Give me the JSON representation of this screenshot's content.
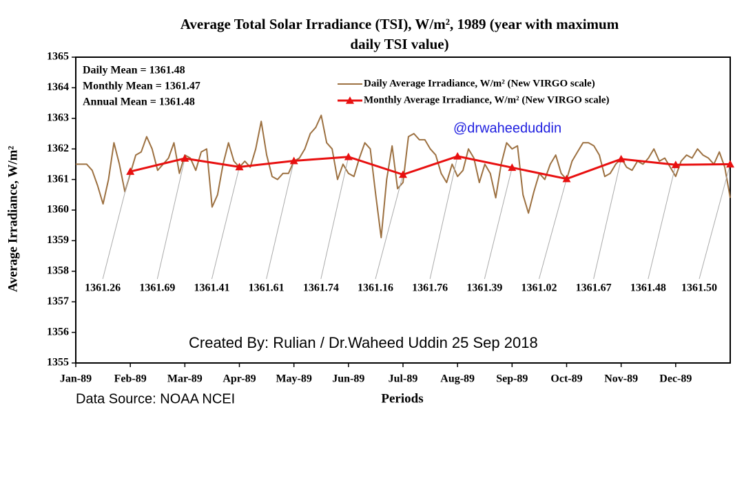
{
  "chart_data": {
    "type": "line",
    "title": [
      "Average Total Solar Irradiance (TSI), W/m², 1989 (year with maximum",
      "daily TSI value)"
    ],
    "x_label": "Periods",
    "y_label": "Average Irradiance, W/m²",
    "stats": [
      "Daily Mean = 1361.48",
      "Monthly  Mean = 1361.47",
      "Annual  Mean = 1361.48"
    ],
    "annotations": [
      "@drwaheeduddin",
      "Created By: Rulian / Dr.Waheed Uddin  25 Sep 2018",
      "Data Source: NOAA NCEI"
    ],
    "xlim": [
      0,
      12
    ],
    "xticks": [
      {
        "value": 0,
        "label": "Jan-89"
      },
      {
        "value": 1,
        "label": "Feb-89"
      },
      {
        "value": 2,
        "label": "Mar-89"
      },
      {
        "value": 3,
        "label": "Apr-89"
      },
      {
        "value": 4,
        "label": "May-89"
      },
      {
        "value": 5,
        "label": "Jun-89"
      },
      {
        "value": 6,
        "label": "Jul-89"
      },
      {
        "value": 7,
        "label": "Aug-89"
      },
      {
        "value": 8,
        "label": "Sep-89"
      },
      {
        "value": 9,
        "label": "Oct-89"
      },
      {
        "value": 10,
        "label": "Nov-89"
      },
      {
        "value": 11,
        "label": "Dec-89"
      }
    ],
    "ylim": [
      1355,
      1365
    ],
    "yticks": [
      1355,
      1356,
      1357,
      1358,
      1359,
      1360,
      1361,
      1362,
      1363,
      1364,
      1365
    ],
    "legend": "upper right",
    "series": [
      {
        "name": "Daily Average Irradiance, W/m² (New VIRGO scale)",
        "color": "#9c7040",
        "marker": "none",
        "x": [
          0,
          0.1,
          0.2,
          0.3,
          0.4,
          0.5,
          0.6,
          0.7,
          0.8,
          0.9,
          1,
          1.1,
          1.2,
          1.3,
          1.4,
          1.5,
          1.6,
          1.7,
          1.8,
          1.9,
          2,
          2.1,
          2.2,
          2.3,
          2.4,
          2.5,
          2.6,
          2.7,
          2.8,
          2.9,
          3,
          3.1,
          3.2,
          3.3,
          3.4,
          3.5,
          3.6,
          3.7,
          3.8,
          3.9,
          4,
          4.1,
          4.2,
          4.3,
          4.4,
          4.5,
          4.6,
          4.7,
          4.8,
          4.9,
          5,
          5.1,
          5.2,
          5.3,
          5.4,
          5.5,
          5.6,
          5.7,
          5.8,
          5.9,
          6,
          6.1,
          6.2,
          6.3,
          6.4,
          6.5,
          6.6,
          6.7,
          6.8,
          6.9,
          7,
          7.1,
          7.2,
          7.3,
          7.4,
          7.5,
          7.6,
          7.7,
          7.8,
          7.9,
          8,
          8.1,
          8.2,
          8.3,
          8.4,
          8.5,
          8.6,
          8.7,
          8.8,
          8.9,
          9,
          9.1,
          9.2,
          9.3,
          9.4,
          9.5,
          9.6,
          9.7,
          9.8,
          9.9,
          10,
          10.1,
          10.2,
          10.3,
          10.4,
          10.5,
          10.6,
          10.7,
          10.8,
          10.9,
          11,
          11.1,
          11.2,
          11.3,
          11.4,
          11.5,
          11.6,
          11.7,
          11.8,
          11.9,
          12
        ],
        "values": [
          1361.5,
          1361.5,
          1361.5,
          1361.3,
          1360.8,
          1360.2,
          1361.0,
          1362.2,
          1361.5,
          1360.6,
          1361.2,
          1361.8,
          1361.9,
          1362.4,
          1362.0,
          1361.3,
          1361.5,
          1361.7,
          1362.2,
          1361.2,
          1361.8,
          1361.7,
          1361.3,
          1361.9,
          1362.0,
          1360.1,
          1360.5,
          1361.5,
          1362.2,
          1361.6,
          1361.4,
          1361.6,
          1361.4,
          1362.0,
          1362.9,
          1361.8,
          1361.1,
          1361.0,
          1361.2,
          1361.2,
          1361.6,
          1361.7,
          1362.0,
          1362.5,
          1362.7,
          1363.1,
          1362.2,
          1362.0,
          1361.0,
          1361.5,
          1361.2,
          1361.1,
          1361.7,
          1362.2,
          1362.0,
          1360.5,
          1359.1,
          1361.0,
          1362.1,
          1360.7,
          1360.9,
          1362.4,
          1362.5,
          1362.3,
          1362.3,
          1362.0,
          1361.8,
          1361.2,
          1360.9,
          1361.5,
          1361.1,
          1361.3,
          1362.0,
          1361.7,
          1360.9,
          1361.5,
          1361.2,
          1360.4,
          1361.5,
          1362.2,
          1362.0,
          1362.1,
          1360.5,
          1359.9,
          1360.6,
          1361.2,
          1361.0,
          1361.5,
          1361.8,
          1361.2,
          1361.0,
          1361.6,
          1361.9,
          1362.2,
          1362.2,
          1362.1,
          1361.8,
          1361.1,
          1361.2,
          1361.5,
          1361.7,
          1361.4,
          1361.3,
          1361.6,
          1361.5,
          1361.7,
          1362.0,
          1361.6,
          1361.7,
          1361.4,
          1361.1,
          1361.6,
          1361.8,
          1361.7,
          1362.0,
          1361.8,
          1361.7,
          1361.5,
          1361.9,
          1361.4,
          1360.4
        ]
      },
      {
        "name": "Monthly Average Irradiance, W/m² (New VIRGO scale)",
        "color": "#e81010",
        "marker": "triangle",
        "x": [
          1,
          2,
          3,
          4,
          5,
          6,
          7,
          8,
          9,
          10,
          11,
          12
        ],
        "values": [
          1361.26,
          1361.69,
          1361.41,
          1361.61,
          1361.74,
          1361.16,
          1361.76,
          1361.39,
          1361.02,
          1361.67,
          1361.48,
          1361.5
        ],
        "value_labels": [
          "1361.26",
          "1361.69",
          "1361.41",
          "1361.61",
          "1361.74",
          "1361.16",
          "1361.76",
          "1361.39",
          "1361.02",
          "1361.67",
          "1361.48",
          "1361.50"
        ]
      }
    ]
  }
}
